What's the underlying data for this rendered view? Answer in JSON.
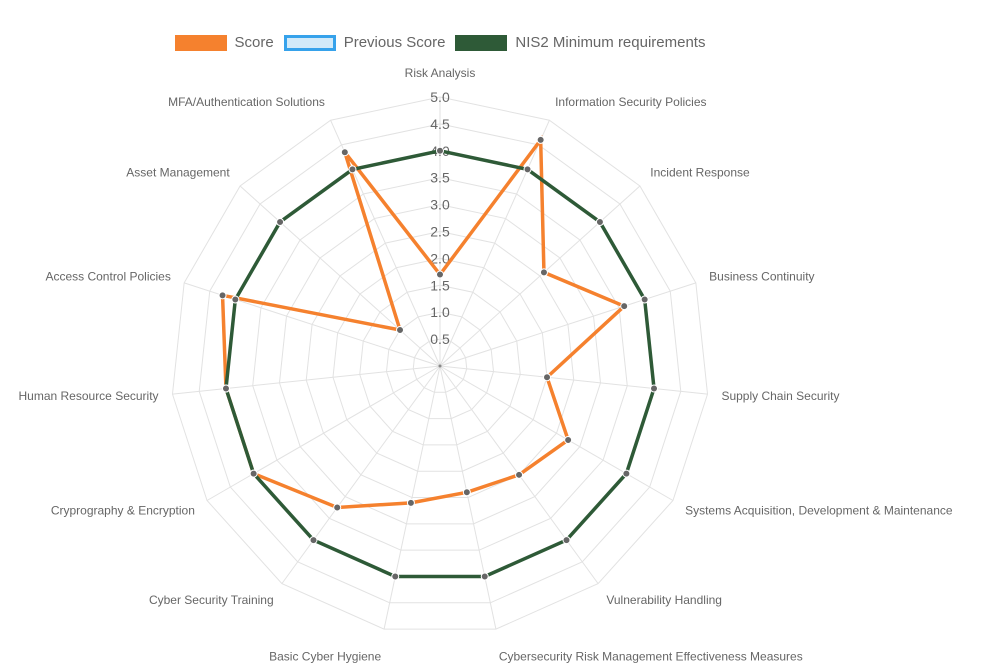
{
  "legend": [
    {
      "label": "Score",
      "fill": "#f5812e",
      "border": "#f5812e"
    },
    {
      "label": "Previous Score",
      "fill": "#d2eaf9",
      "border": "#36a2eb"
    },
    {
      "label": "NIS2 Minimum requirements",
      "fill": "#2e5a37",
      "border": "#2e5a37"
    }
  ],
  "chart_data": {
    "type": "radar",
    "title": "",
    "categories": [
      "Risk Analysis",
      "Information Security Policies",
      "Incident Response",
      "Business Continuity",
      "Supply Chain Security",
      "Systems Acquisition, Development & Maintenance",
      "Vulnerability Handling",
      "Cybersecurity Risk Management Effectiveness Measures",
      "Basic Cyber Hygiene",
      "Cyber Security Training",
      "Cryprography & Encryption",
      "Human Resource Security",
      "Access Control Policies",
      "Asset Management",
      "MFA/Authentication Solutions"
    ],
    "series": [
      {
        "name": "Score",
        "color": "#f5812e",
        "values": [
          1.7,
          4.6,
          2.6,
          3.6,
          2.0,
          2.75,
          2.5,
          2.4,
          2.6,
          3.25,
          4.0,
          4.0,
          4.25,
          1.0,
          4.35
        ]
      },
      {
        "name": "Previous Score",
        "color": "#36a2eb",
        "values": []
      },
      {
        "name": "NIS2 Minimum requirements",
        "color": "#2e5a37",
        "values": [
          4,
          4,
          4,
          4,
          4,
          4,
          4,
          4,
          4,
          4,
          4,
          4,
          4,
          4,
          4
        ]
      }
    ],
    "r_ticks": [
      "0.5",
      "1.0",
      "1.5",
      "2.0",
      "2.5",
      "3.0",
      "3.5",
      "4.0",
      "4.5",
      "5.0"
    ],
    "rlim": [
      0,
      5
    ],
    "grid": true,
    "legend_position": "top"
  }
}
